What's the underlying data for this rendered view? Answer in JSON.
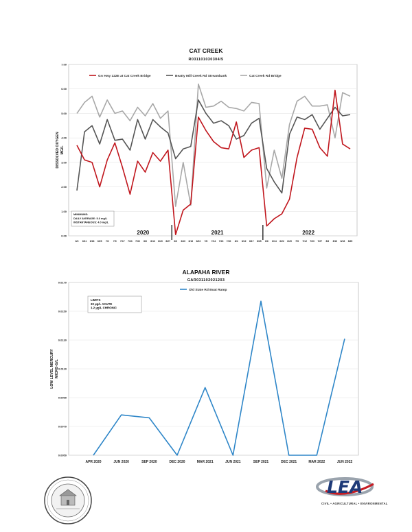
{
  "chart_data": [
    {
      "type": "line",
      "title": "CAT CREEK",
      "subtitle": "R031101030304/5",
      "ylabel": "DISSOLVED OXYGEN MG/L",
      "ylim": [
        0,
        7
      ],
      "y_ticks": [
        "0.00",
        "1.00",
        "2.00",
        "3.00",
        "4.00",
        "5.00",
        "6.00",
        "7.00"
      ],
      "grid": true,
      "legend": "top",
      "categories": [
        "6/3",
        "6/11",
        "6/18",
        "6/25",
        "7/2",
        "7/9",
        "7/17",
        "7/23",
        "7/30",
        "8/6",
        "8/13",
        "8/20",
        "8/27",
        "6/3",
        "6/10",
        "6/16",
        "6/23",
        "7/6",
        "7/14",
        "7/23",
        "7/30",
        "8/4",
        "8/12",
        "8/17",
        "8/25",
        "6/6",
        "6/14",
        "6/22",
        "6/29",
        "7/5",
        "7/12",
        "7/20",
        "7/27",
        "8/3",
        "8/10",
        "8/18",
        "8/25"
      ],
      "year_labels": [
        "2020",
        "2021",
        "2022"
      ],
      "year_breaks": [
        13,
        25
      ],
      "series": [
        {
          "name": "GA Hwy 122E at Cat Creek Bridge",
          "color": "#c0151c",
          "values": [
            3.7,
            3.1,
            3.0,
            2.0,
            3.1,
            3.8,
            2.8,
            1.7,
            3.05,
            2.6,
            3.4,
            3.05,
            3.5,
            0.05,
            1.05,
            1.3,
            4.85,
            4.3,
            3.85,
            3.6,
            3.55,
            4.65,
            3.2,
            3.5,
            3.6,
            0.4,
            0.7,
            0.9,
            1.5,
            3.2,
            4.4,
            4.35,
            3.6,
            3.25,
            5.95,
            3.75,
            3.55
          ]
        },
        {
          "name": "Beatty Mill Creek Rd Streambank",
          "color": "#555555",
          "values": [
            1.85,
            4.25,
            4.5,
            3.75,
            4.75,
            3.9,
            3.95,
            3.5,
            4.75,
            3.95,
            4.75,
            4.45,
            4.2,
            3.15,
            3.55,
            3.65,
            5.55,
            5.0,
            4.6,
            4.7,
            4.5,
            3.95,
            4.1,
            4.6,
            4.8,
            2.75,
            2.2,
            1.75,
            4.15,
            4.85,
            4.75,
            4.95,
            4.35,
            4.8,
            5.25,
            4.9,
            4.95
          ]
        },
        {
          "name": "Cat Creek Rd Bridge",
          "color": "#a8a8a8",
          "values": [
            5.0,
            5.45,
            5.7,
            4.85,
            5.55,
            5.0,
            5.1,
            4.7,
            5.25,
            4.9,
            5.4,
            4.8,
            5.1,
            1.2,
            3.0,
            1.25,
            6.2,
            5.25,
            5.3,
            5.5,
            5.25,
            5.2,
            5.1,
            5.45,
            5.4,
            1.95,
            3.5,
            2.35,
            4.55,
            5.5,
            5.7,
            5.3,
            5.3,
            5.35,
            4.0,
            5.85,
            5.7
          ]
        }
      ],
      "annotation": {
        "title": "MINIMUMS:",
        "lines": [
          "DAILY AVERAGE: 5.0 mg/L",
          "INSTANTANEOUS: 4.0 mg/L"
        ]
      }
    },
    {
      "type": "line",
      "title": "ALAPAHA RIVER",
      "subtitle": "GAR031102021203",
      "ylabel": "LOW LEVEL MERCURY MICRO-G/L",
      "ylim": [
        0.005,
        0.017
      ],
      "y_ticks": [
        "0.0050",
        "0.0070",
        "0.0090",
        "0.0110",
        "0.0130",
        "0.0150",
        "0.0170"
      ],
      "grid": true,
      "legend": "top",
      "categories": [
        "APR 2020",
        "JUN 2020",
        "SEP 2020",
        "DEC 2020",
        "MAR 2021",
        "JUN 2021",
        "SEP 2021",
        "DEC 2021",
        "MAR 2022",
        "JUN 2022"
      ],
      "series": [
        {
          "name": "Old State Rd Boat Ramp",
          "color": "#2e86c8",
          "values": [
            0.005,
            0.0078,
            0.0076,
            0.005,
            0.0097,
            0.005,
            0.0157,
            0.005,
            0.005,
            0.0131
          ]
        }
      ],
      "annotation": {
        "title": "LIMITS",
        "lines": [
          "30 µg/L ACUTE",
          "1.2 µg/L CHRONIC"
        ]
      }
    }
  ],
  "logos": {
    "left_seal_text": "LOWNDES COUNTY GEORGIA BOARD OF COMMISSIONERS 1825",
    "right_logo_text": "LEA",
    "right_logo_subtitle": "CIVIL • AGRICULTURAL • ENVIRONMENTAL"
  }
}
